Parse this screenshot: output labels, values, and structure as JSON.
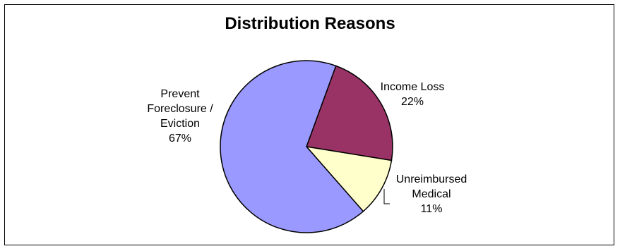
{
  "chart_data": {
    "type": "pie",
    "title": "Distribution Reasons",
    "slices": [
      {
        "label_lines": [
          "Income Loss"
        ],
        "value": 22,
        "percent_label": "22%",
        "color": "#993366"
      },
      {
        "label_lines": [
          "Unreimbursed",
          "Medical"
        ],
        "value": 11,
        "percent_label": "11%",
        "color": "#FFFFCC"
      },
      {
        "label_lines": [
          "Prevent",
          "Foreclosure /",
          "Eviction"
        ],
        "value": 67,
        "percent_label": "67%",
        "color": "#9999FF"
      }
    ],
    "start_angle_deg": 20,
    "direction": "clockwise",
    "slice_border_color": "#000000"
  }
}
